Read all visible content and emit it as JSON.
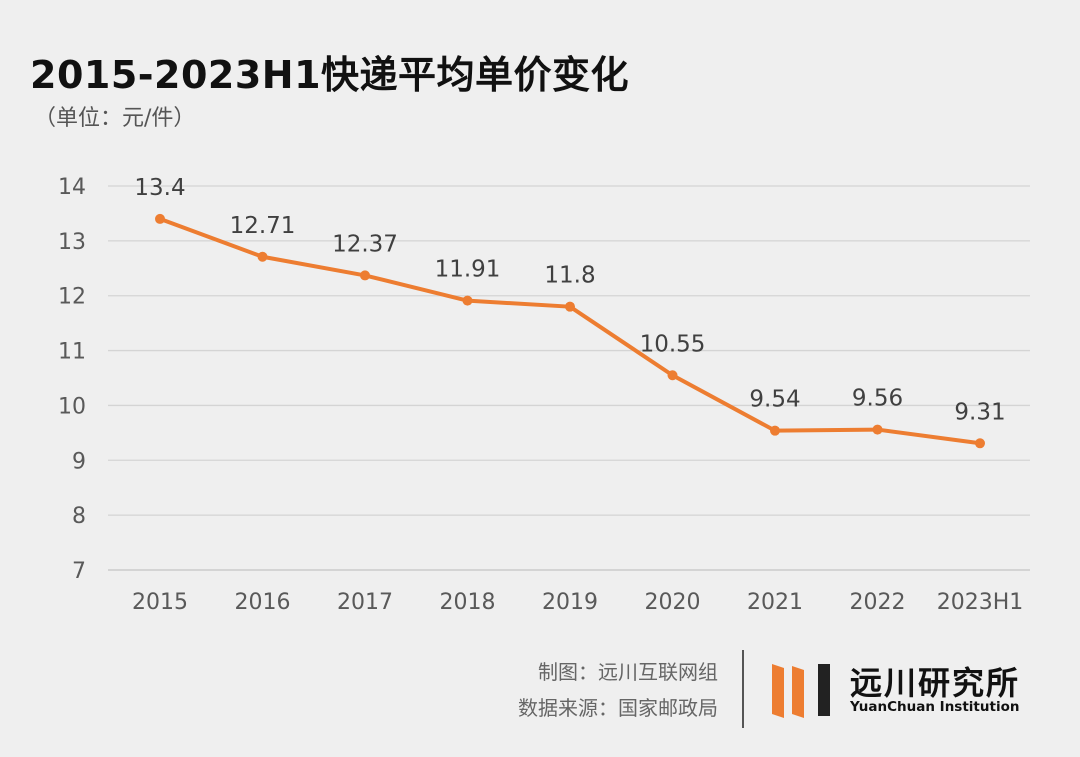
{
  "header": {
    "title": "2015-2023H1快递平均单价变化",
    "unit": "（单位：元/件）"
  },
  "chart_data": {
    "type": "line",
    "title": "2015-2023H1快递平均单价变化",
    "ylabel": "元/件",
    "xlabel": "",
    "categories": [
      "2015",
      "2016",
      "2017",
      "2018",
      "2019",
      "2020",
      "2021",
      "2022",
      "2023H1"
    ],
    "series": [
      {
        "name": "快递平均单价",
        "values": [
          13.4,
          12.71,
          12.37,
          11.91,
          11.8,
          10.55,
          9.54,
          9.56,
          9.31
        ],
        "labels": [
          "13.4",
          "12.71",
          "12.37",
          "11.91",
          "11.8",
          "10.55",
          "9.54",
          "9.56",
          "9.31"
        ]
      }
    ],
    "ylim": [
      7,
      14
    ],
    "yticks": [
      7,
      8,
      9,
      10,
      11,
      12,
      13,
      14
    ],
    "grid": true,
    "legend": "none",
    "line_color": "#ed7d31"
  },
  "footer": {
    "credit": "制图：远川互联网组",
    "source": "数据来源：国家邮政局"
  },
  "brand": {
    "name_cn": "远川研究所",
    "name_en": "YuanChuan Institution",
    "accent": "#ed7d31",
    "dark": "#222222"
  }
}
